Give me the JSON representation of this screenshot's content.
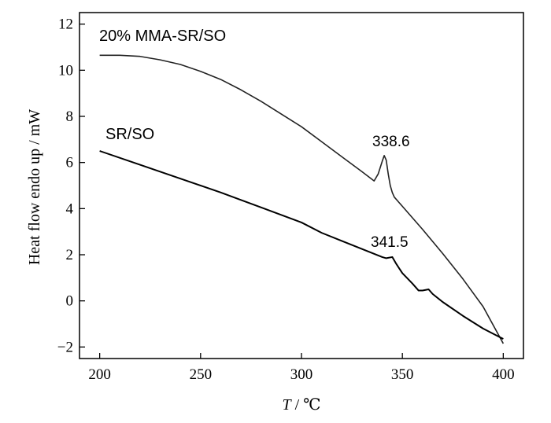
{
  "chart_data": {
    "type": "line",
    "title": "",
    "xlabel_var": "T",
    "xlabel_unit": " / ℃",
    "ylabel": "Heat flow endo up / mW",
    "xlim": [
      190,
      410
    ],
    "ylim": [
      -2.5,
      12.5
    ],
    "xticks": [
      200,
      250,
      300,
      350,
      400
    ],
    "yticks": [
      12,
      10,
      8,
      6,
      4,
      2,
      0,
      -2
    ],
    "ytick_labels": [
      "12",
      "10",
      "8",
      "6",
      "4",
      "2",
      "0",
      "−2"
    ],
    "grid": false,
    "series": [
      {
        "name": "20% MMA-SR/SO",
        "x": [
          200,
          210,
          220,
          230,
          240,
          250,
          260,
          270,
          280,
          290,
          300,
          310,
          320,
          330,
          336,
          338,
          340,
          341,
          342,
          343,
          344,
          345,
          346,
          350,
          360,
          370,
          380,
          390,
          400
        ],
        "y": [
          10.65,
          10.65,
          10.6,
          10.45,
          10.25,
          9.95,
          9.6,
          9.15,
          8.65,
          8.1,
          7.55,
          6.9,
          6.25,
          5.6,
          5.2,
          5.5,
          6.05,
          6.3,
          6.1,
          5.5,
          5.0,
          4.7,
          4.5,
          4.1,
          3.1,
          2.05,
          0.95,
          -0.25,
          -1.85
        ]
      },
      {
        "name": "SR/SO",
        "x": [
          200,
          220,
          240,
          260,
          280,
          300,
          310,
          320,
          330,
          340,
          342,
          345,
          347,
          350,
          355,
          358,
          360,
          363,
          365,
          370,
          380,
          390,
          400
        ],
        "y": [
          6.5,
          5.9,
          5.3,
          4.7,
          4.05,
          3.4,
          2.95,
          2.6,
          2.25,
          1.9,
          1.85,
          1.9,
          1.6,
          1.2,
          0.75,
          0.45,
          0.45,
          0.5,
          0.3,
          -0.05,
          -0.65,
          -1.2,
          -1.65
        ]
      }
    ],
    "annotations": [
      {
        "text": "338.6",
        "x": 340.6,
        "y": 6.3
      },
      {
        "text": "341.5",
        "x": 341.5,
        "y": 1.9
      }
    ]
  }
}
